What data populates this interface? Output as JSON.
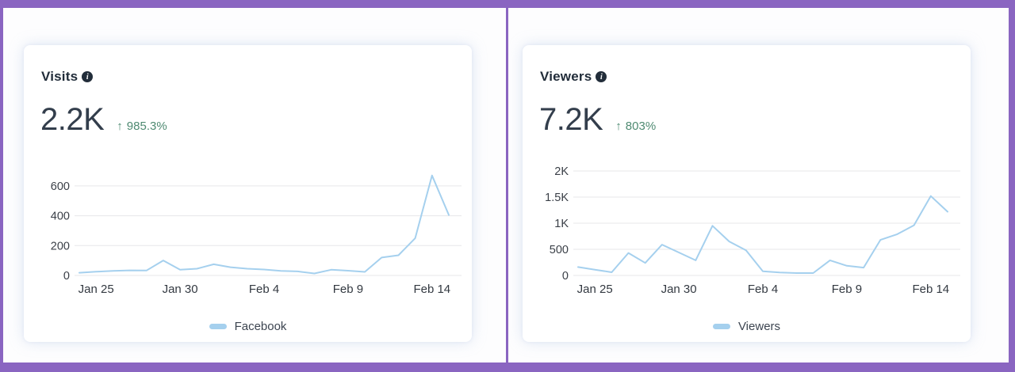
{
  "icons": {
    "info": "i",
    "up_arrow": "↑"
  },
  "colors": {
    "frame_purple": "#8a65c1",
    "line_blue": "#a5d0ee",
    "positive_green": "#4e8a71",
    "title_dark": "#222d3a",
    "metric_dark": "#333e4c",
    "gridline_gray": "#e7e7ea"
  },
  "chart_data": [
    {
      "id": "visits",
      "type": "line",
      "title": "Visits",
      "metric": "2.2K",
      "change": "985.3%",
      "change_direction": "up",
      "grid": true,
      "legend_position": "bottom",
      "x": [
        "Jan 24",
        "Jan 25",
        "Jan 26",
        "Jan 27",
        "Jan 28",
        "Jan 29",
        "Jan 30",
        "Jan 31",
        "Feb 1",
        "Feb 2",
        "Feb 3",
        "Feb 4",
        "Feb 5",
        "Feb 6",
        "Feb 7",
        "Feb 8",
        "Feb 9",
        "Feb 10",
        "Feb 11",
        "Feb 12",
        "Feb 13",
        "Feb 14",
        "Feb 15"
      ],
      "x_tick_labels": [
        "Jan 25",
        "Jan 30",
        "Feb 4",
        "Feb 9",
        "Feb 14"
      ],
      "y_ticks": [
        {
          "value": 0,
          "label": "0"
        },
        {
          "value": 200,
          "label": "200"
        },
        {
          "value": 400,
          "label": "400"
        },
        {
          "value": 600,
          "label": "600"
        }
      ],
      "ylim": [
        0,
        700
      ],
      "series": [
        {
          "name": "Facebook",
          "color": "#a5d0ee",
          "values": [
            18,
            25,
            30,
            34,
            33,
            100,
            38,
            45,
            75,
            55,
            45,
            40,
            31,
            27,
            13,
            38,
            32,
            24,
            120,
            135,
            250,
            670,
            405
          ]
        }
      ]
    },
    {
      "id": "viewers",
      "type": "line",
      "title": "Viewers",
      "metric": "7.2K",
      "change": "803%",
      "change_direction": "up",
      "grid": true,
      "legend_position": "bottom",
      "x": [
        "Jan 24",
        "Jan 25",
        "Jan 26",
        "Jan 27",
        "Jan 28",
        "Jan 29",
        "Jan 30",
        "Jan 31",
        "Feb 1",
        "Feb 2",
        "Feb 3",
        "Feb 4",
        "Feb 5",
        "Feb 6",
        "Feb 7",
        "Feb 8",
        "Feb 9",
        "Feb 10",
        "Feb 11",
        "Feb 12",
        "Feb 13",
        "Feb 14",
        "Feb 15"
      ],
      "x_tick_labels": [
        "Jan 25",
        "Jan 30",
        "Feb 4",
        "Feb 9",
        "Feb 14"
      ],
      "y_ticks": [
        {
          "value": 0,
          "label": "0"
        },
        {
          "value": 500,
          "label": "500"
        },
        {
          "value": 1000,
          "label": "1K"
        },
        {
          "value": 1500,
          "label": "1.5K"
        },
        {
          "value": 2000,
          "label": "2K"
        }
      ],
      "ylim": [
        0,
        2000
      ],
      "series": [
        {
          "name": "Viewers",
          "color": "#a5d0ee",
          "values": [
            160,
            110,
            60,
            430,
            240,
            590,
            440,
            290,
            950,
            650,
            480,
            80,
            58,
            45,
            45,
            290,
            185,
            150,
            680,
            790,
            960,
            1520,
            1220
          ]
        }
      ]
    }
  ]
}
